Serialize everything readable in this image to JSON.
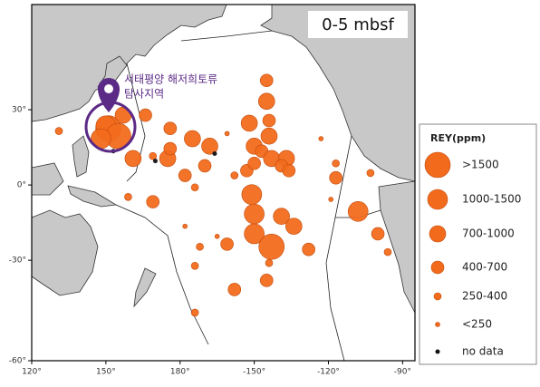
{
  "chart_data": {
    "type": "scatter",
    "projection": "mercator",
    "title": "0-5 mbsf",
    "annotation": [
      "서태평양 해저희토류",
      "탐사지역"
    ],
    "legend_title": "REY(ppm)",
    "classes": [
      {
        "label": ">1500",
        "color": "#f26b1d"
      },
      {
        "label": "1000-1500",
        "color": "#f26b1d"
      },
      {
        "label": "700-1000",
        "color": "#f26b1d"
      },
      {
        "label": "400-700",
        "color": "#f26b1d"
      },
      {
        "label": "250-400",
        "color": "#f26b1d"
      },
      {
        "label": "<250",
        "color": "#f26b1d"
      },
      {
        "label": "no data",
        "color": "#111111"
      }
    ],
    "x": [
      151,
      150,
      155,
      148,
      157,
      -145,
      -145,
      -144,
      -152,
      -144,
      -150,
      -147,
      -143,
      -137,
      -139,
      -136,
      176,
      -168,
      -175,
      175,
      -178,
      -170,
      -174,
      -158,
      -153,
      -150,
      161,
      169,
      176,
      -151,
      -150,
      -150,
      -143,
      -139,
      -134,
      -128,
      -144,
      -145,
      -117,
      -117,
      -108,
      -100,
      -96,
      -103,
      -161,
      -158,
      -172,
      -174,
      -174,
      169,
      159,
      -178,
      -165,
      -119,
      -123,
      -161,
      131,
      166,
      170,
      -166,
      153
    ],
    "y": [
      23,
      24,
      20,
      19,
      28,
      40,
      33,
      26,
      25,
      20,
      16,
      14,
      11,
      11,
      8,
      6,
      23,
      16,
      19,
      11,
      4,
      8,
      -1,
      4,
      6,
      9,
      11,
      12,
      15,
      -4,
      -12,
      -20,
      -25,
      -13,
      -17,
      -26,
      -31,
      -37,
      9,
      3,
      -11,
      -20,
      -27,
      5,
      -24,
      -40,
      -25,
      -32,
      -47,
      -7,
      -5,
      -17,
      -21,
      -6,
      19,
      21,
      22,
      28,
      10,
      13,
      14
    ],
    "class": [
      0,
      1,
      0,
      1,
      2,
      3,
      2,
      3,
      2,
      2,
      2,
      3,
      2,
      2,
      3,
      3,
      3,
      2,
      2,
      2,
      3,
      3,
      4,
      4,
      3,
      3,
      2,
      4,
      3,
      1,
      1,
      1,
      0,
      2,
      2,
      3,
      4,
      3,
      4,
      3,
      1,
      3,
      4,
      4,
      3,
      3,
      4,
      4,
      4,
      3,
      4,
      5,
      5,
      5,
      5,
      5,
      4,
      3,
      6,
      6,
      6
    ],
    "xlim": [
      120,
      275
    ],
    "ylim": [
      -59,
      60
    ],
    "xticks": [
      {
        "value": 120,
        "label": "120°"
      },
      {
        "value": 150,
        "label": "150°"
      },
      {
        "value": 180,
        "label": "180°"
      },
      {
        "value": -150,
        "label": "-150°"
      },
      {
        "value": -120,
        "label": "-120°"
      },
      {
        "value": -90,
        "label": "-90°"
      }
    ],
    "yticks": [
      {
        "value": 30,
        "label": "30°"
      },
      {
        "value": 0,
        "label": "0°"
      },
      {
        "value": -30,
        "label": "-30°"
      },
      {
        "value": -60,
        "label": "-60°"
      }
    ]
  }
}
